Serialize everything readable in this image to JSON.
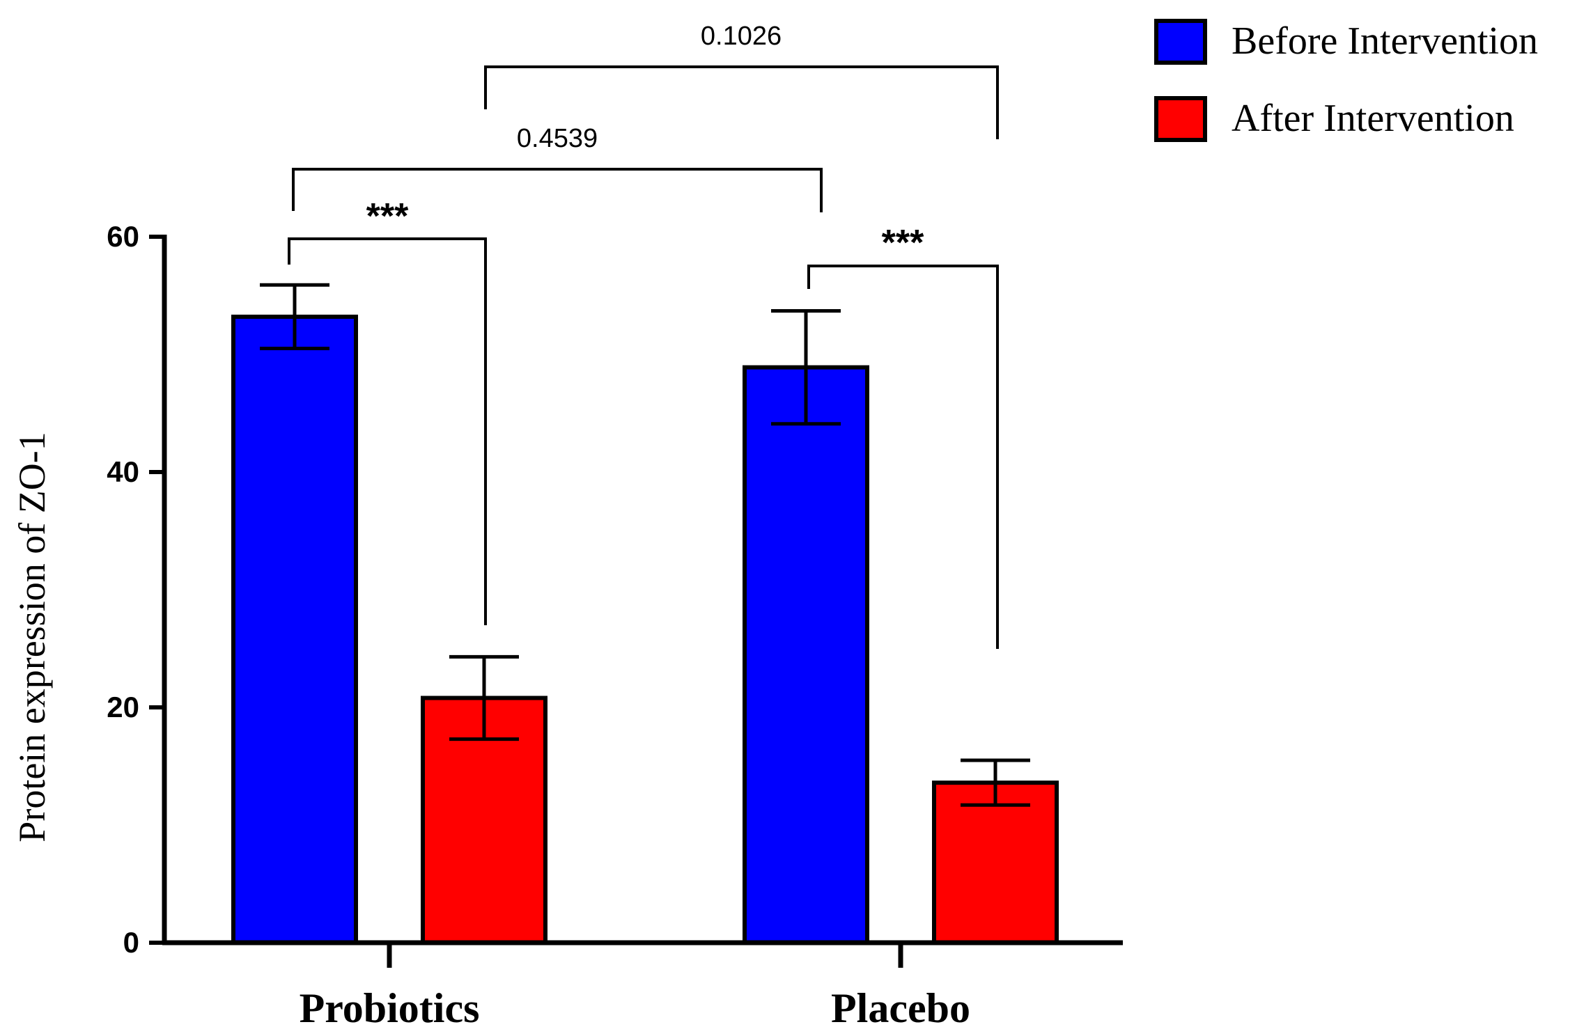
{
  "chart_data": {
    "type": "bar",
    "ylabel": "Protein expression of ZO-1",
    "ylim": [
      0,
      60
    ],
    "yticks": [
      0,
      20,
      40,
      60
    ],
    "categories": [
      "Probiotics",
      "Placebo"
    ],
    "series": [
      {
        "name": "Before Intervention",
        "color": "#0000ff",
        "values": [
          53.2,
          48.9
        ],
        "errors": [
          2.7,
          4.8
        ]
      },
      {
        "name": "After Intervention",
        "color": "#ff0000",
        "values": [
          20.8,
          13.6
        ],
        "errors": [
          3.5,
          1.9
        ]
      }
    ],
    "legend_position": "top-right",
    "annotations": [
      {
        "label": "***",
        "from": "Probiotics: Before Intervention",
        "to": "Probiotics: After Intervention"
      },
      {
        "label": "***",
        "from": "Placebo: Before Intervention",
        "to": "Placebo: After Intervention"
      },
      {
        "label": "0.4539",
        "from": "Probiotics: Before Intervention",
        "to": "Placebo: Before Intervention"
      },
      {
        "label": "0.1026",
        "from": "Probiotics: After Intervention",
        "to": "Placebo: After Intervention"
      }
    ]
  }
}
